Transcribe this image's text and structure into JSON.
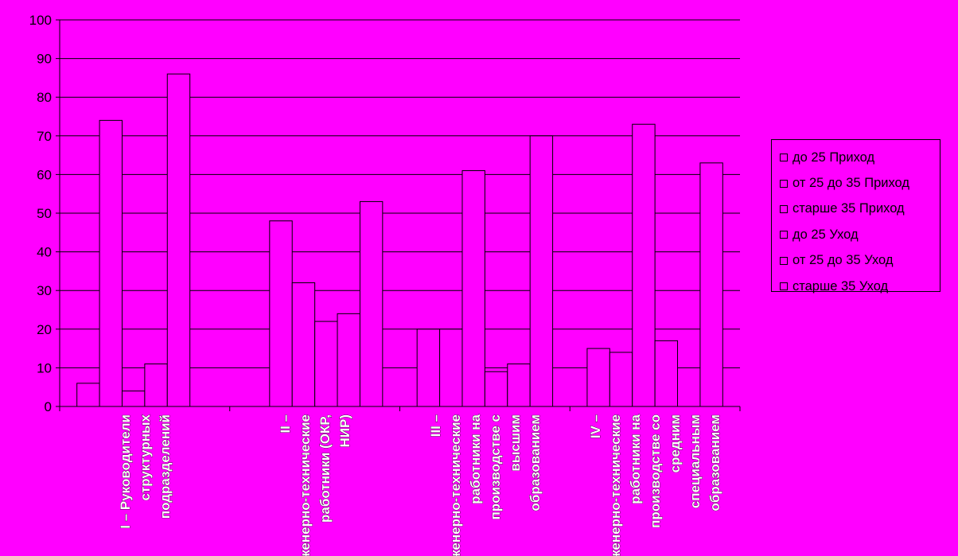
{
  "chart_data": {
    "type": "bar",
    "ylim": [
      0,
      100
    ],
    "yticks": [
      0,
      10,
      20,
      30,
      40,
      50,
      60,
      70,
      80,
      90,
      100
    ],
    "grid": true,
    "legend_position": "right",
    "categories": [
      "I – Руководители структурных подразделений",
      "II – Инженерно-технические работники (ОКР, НИР)",
      "III – Инженерно-технические работники на производстве с высшим образованием",
      "IV – Инженерно-технические работники на производстве со средним специальным образованием"
    ],
    "series": [
      {
        "name": "до 25 Приход",
        "values": [
          6,
          0,
          20,
          15
        ]
      },
      {
        "name": "от 25 до 35 Приход",
        "values": [
          74,
          48,
          20,
          14
        ]
      },
      {
        "name": "старше 35 Приход",
        "values": [
          4,
          32,
          61,
          73
        ]
      },
      {
        "name": "до 25 Уход",
        "values": [
          11,
          22,
          9,
          17
        ]
      },
      {
        "name": "от 25 до 35 Уход",
        "values": [
          86,
          24,
          11,
          0
        ]
      },
      {
        "name": "старше 35 Уход",
        "values": [
          0,
          53,
          70,
          63
        ]
      }
    ],
    "colors": {
      "background": "#ff00ff",
      "bar_fill": "#ff00ff",
      "stroke": "#000000",
      "label_text": "#ffffff"
    }
  }
}
